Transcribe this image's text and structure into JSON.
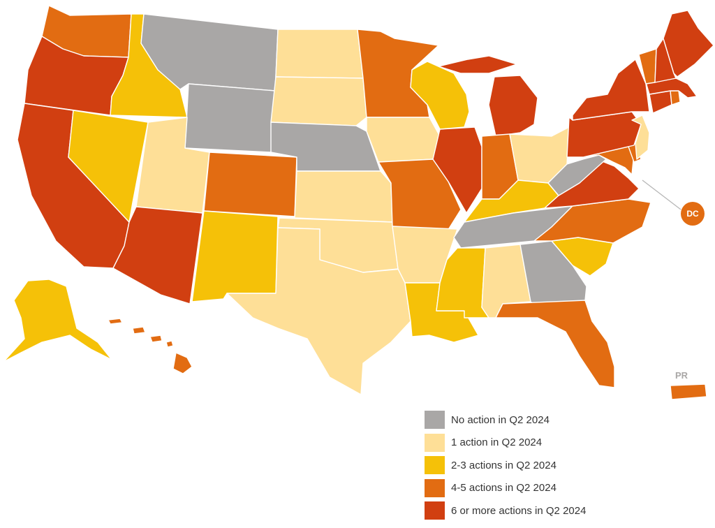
{
  "legend": [
    {
      "key": "none",
      "label": "No action in Q2 2024",
      "color": "#a9a7a6"
    },
    {
      "key": "one",
      "label": "1 action in Q2 2024",
      "color": "#fedf97"
    },
    {
      "key": "two_three",
      "label": "2-3 actions in Q2 2024",
      "color": "#f5c108"
    },
    {
      "key": "four_five",
      "label": "4-5 actions in Q2 2024",
      "color": "#e26c12"
    },
    {
      "key": "six_plus",
      "label": "6 or more actions in Q2 2024",
      "color": "#d13f11"
    }
  ],
  "labels": {
    "dc": "DC",
    "pr": "PR"
  },
  "states": {
    "WA": "four_five",
    "OR": "six_plus",
    "CA": "six_plus",
    "ID": "two_three",
    "NV": "two_three",
    "MT": "none",
    "WY": "none",
    "UT": "one",
    "AZ": "six_plus",
    "CO": "four_five",
    "NM": "two_three",
    "ND": "one",
    "SD": "one",
    "NE": "none",
    "KS": "one",
    "OK": "one",
    "TX": "one",
    "MN": "four_five",
    "IA": "one",
    "MO": "four_five",
    "AR": "one",
    "LA": "two_three",
    "WI": "two_three",
    "IL": "six_plus",
    "MI": "six_plus",
    "IN": "four_five",
    "OH": "one",
    "KY": "two_three",
    "TN": "none",
    "MS": "two_three",
    "AL": "one",
    "GA": "none",
    "FL": "four_five",
    "SC": "two_three",
    "NC": "four_five",
    "VA": "six_plus",
    "WV": "none",
    "MD": "four_five",
    "DE": "four_five",
    "PA": "six_plus",
    "NJ": "one",
    "NY": "six_plus",
    "CT": "six_plus",
    "RI": "four_five",
    "MA": "six_plus",
    "VT": "four_five",
    "NH": "six_plus",
    "ME": "six_plus",
    "AK": "two_three",
    "HI": "four_five",
    "DC": "four_five",
    "PR": "four_five"
  }
}
